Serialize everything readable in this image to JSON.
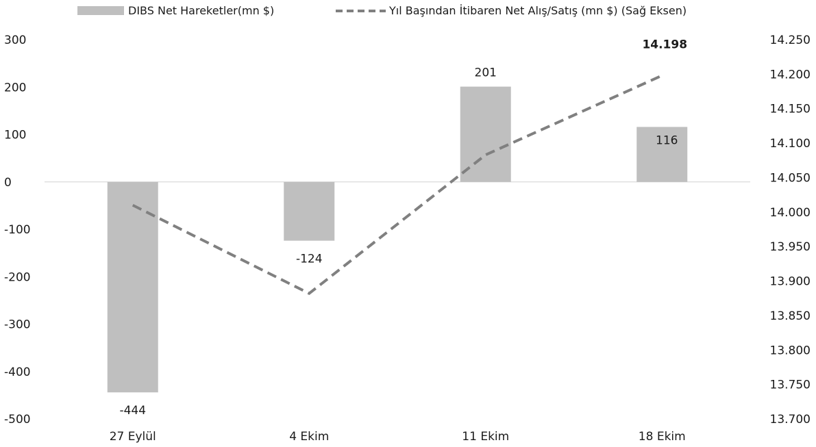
{
  "chart_data": {
    "type": "bar",
    "categories": [
      "27 Eylül",
      "4 Ekim",
      "11 Ekim",
      "18 Ekim"
    ],
    "series": [
      {
        "name": "DIBS Net Hareketler(mn $)",
        "kind": "bar",
        "axis": "left",
        "color": "#bfbfbf",
        "values": [
          -444,
          -124,
          201,
          116
        ],
        "labels": [
          "-444",
          "-124",
          "201",
          "116"
        ]
      },
      {
        "name": "Yıl Başından İtibaren Net Alış/Satış (mn $) (Sağ Eksen)",
        "kind": "line",
        "style": "dashed",
        "axis": "right",
        "color": "#808080",
        "values": [
          14010,
          13882,
          14083,
          14198
        ],
        "labels": [
          "",
          "",
          "",
          "14.198"
        ]
      }
    ],
    "y_left": {
      "ylim": [
        -500,
        300
      ],
      "ticks": [
        300,
        200,
        100,
        0,
        -100,
        -200,
        -300,
        -400,
        -500
      ],
      "tick_labels": [
        "300",
        "200",
        "100",
        "0",
        "-100",
        "-200",
        "-300",
        "-400",
        "-500"
      ]
    },
    "y_right": {
      "ylim": [
        13700,
        14250
      ],
      "ticks": [
        14250,
        14200,
        14150,
        14100,
        14050,
        14000,
        13950,
        13900,
        13850,
        13800,
        13750,
        13700
      ],
      "tick_labels": [
        "14.250",
        "14.200",
        "14.150",
        "14.100",
        "14.050",
        "14.000",
        "13.950",
        "13.900",
        "13.850",
        "13.800",
        "13.750",
        "13.700"
      ]
    },
    "grid": false,
    "legend_position": "top"
  }
}
